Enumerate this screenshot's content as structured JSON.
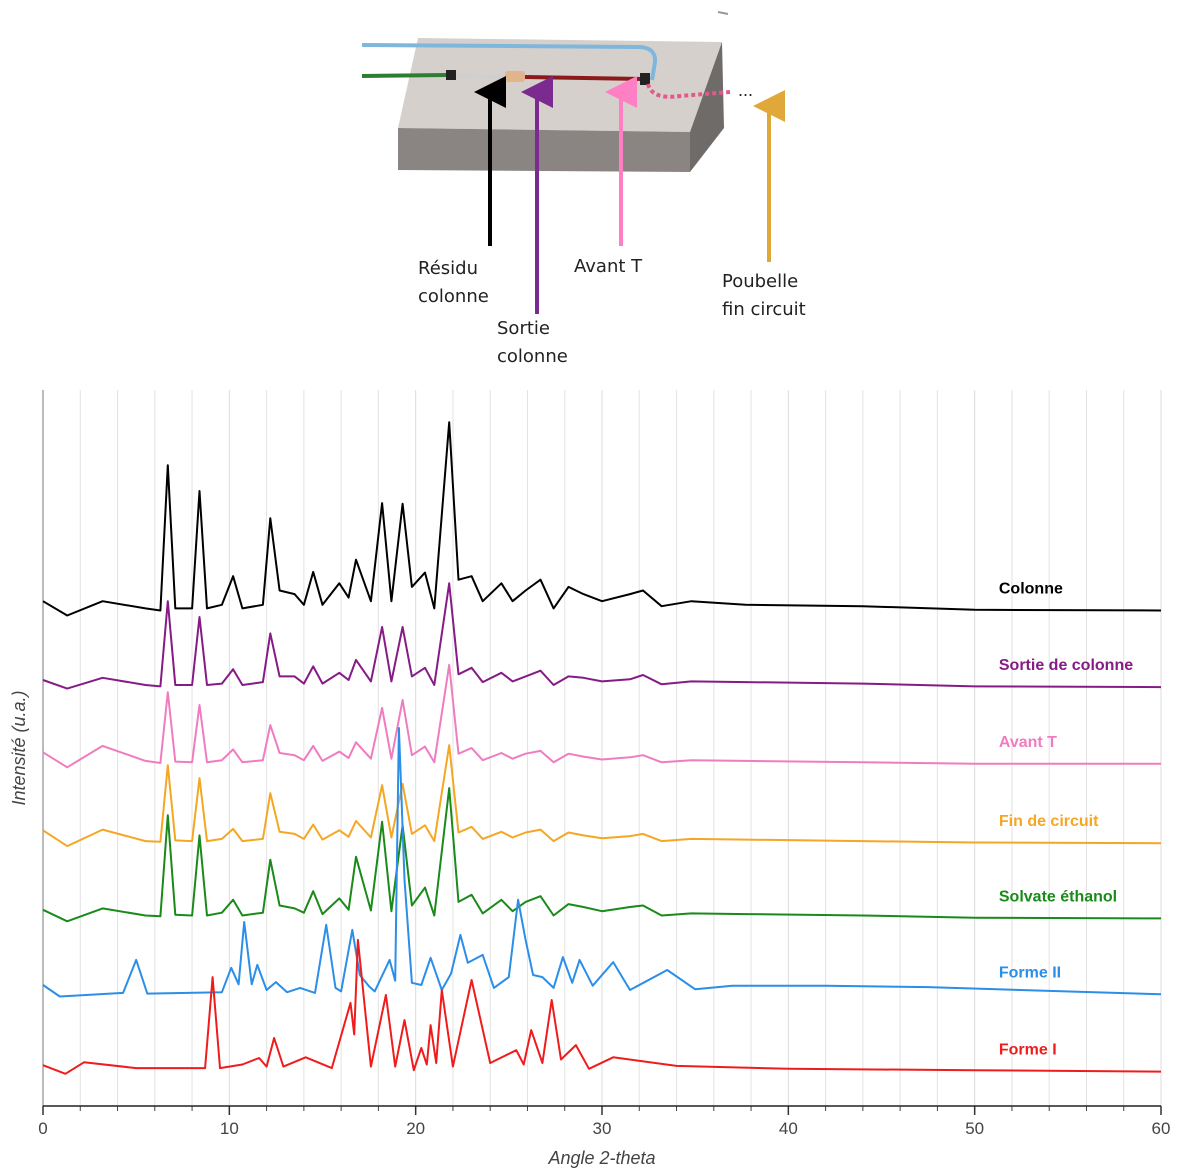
{
  "diagram": {
    "labels": [
      {
        "lines": [
          "Résidu",
          "colonne"
        ],
        "color": "#000000"
      },
      {
        "lines": [
          "Sortie",
          "colonne"
        ],
        "color": "#7b2a8f"
      },
      {
        "lines": [
          "Avant T"
        ],
        "color": "#ff7fc4"
      },
      {
        "lines": [
          "Poubelle",
          "fin circuit"
        ],
        "color": "#e0a838"
      }
    ],
    "ellipsis": "..."
  },
  "chart_data": {
    "type": "line",
    "xlabel": "Angle 2-theta",
    "ylabel": "Intensité (u.a.)",
    "xlim": [
      0,
      60
    ],
    "xticks": [
      0,
      10,
      20,
      30,
      40,
      50,
      60
    ],
    "xminorticks": [
      2,
      4,
      6,
      8,
      12,
      14,
      16,
      18,
      22,
      24,
      26,
      28,
      32,
      34,
      36,
      38,
      42,
      44,
      46,
      48,
      52,
      54,
      56,
      58
    ],
    "ylim": [
      0,
      100
    ],
    "grid": true,
    "series": [
      {
        "name": "Colonne",
        "color": "#000000",
        "x": [
          0,
          1.3,
          3.2,
          5.5,
          6.3,
          6.7,
          7.1,
          8.0,
          8.4,
          8.8,
          9.6,
          10.2,
          10.7,
          11.8,
          12.2,
          12.7,
          13.5,
          14.0,
          14.5,
          15.0,
          15.9,
          16.4,
          16.8,
          17.6,
          18.2,
          18.7,
          19.3,
          19.8,
          20.5,
          21.0,
          21.8,
          22.3,
          23.0,
          23.6,
          24.6,
          25.2,
          25.9,
          26.7,
          27.4,
          28.2,
          29.0,
          30.0,
          31.5,
          32.2,
          33.2,
          34.8,
          37.7,
          44,
          50,
          60
        ],
        "values": [
          70.5,
          68.5,
          70.5,
          69.5,
          69.2,
          89.5,
          69.5,
          69.5,
          85.9,
          69.5,
          70,
          74,
          69.5,
          70,
          82.1,
          72,
          71.5,
          70,
          74.6,
          70,
          73,
          71,
          76.3,
          70.5,
          84.2,
          70.5,
          84.1,
          72.5,
          74.5,
          69.5,
          95.5,
          73.5,
          74,
          70.5,
          73,
          70.5,
          72,
          73.5,
          69.5,
          72.5,
          71.5,
          70.5,
          71.5,
          72,
          69.8,
          70.5,
          70,
          69.8,
          69.3,
          69.2
        ]
      },
      {
        "name": "Sortie de colonne",
        "color": "#861b86",
        "x": [
          0,
          1.3,
          3.2,
          5.5,
          6.3,
          6.7,
          7.1,
          8.0,
          8.4,
          8.8,
          9.6,
          10.2,
          10.7,
          11.8,
          12.2,
          12.7,
          13.5,
          14.0,
          14.5,
          15.0,
          15.9,
          16.4,
          16.8,
          17.6,
          18.2,
          18.7,
          19.3,
          19.8,
          20.5,
          21.0,
          21.8,
          22.3,
          23.0,
          23.6,
          24.6,
          25.2,
          25.9,
          26.7,
          27.4,
          28.2,
          29.0,
          30.0,
          31.5,
          32.2,
          33.2,
          34.8,
          37.7,
          44,
          50,
          60
        ],
        "values": [
          59.5,
          58.3,
          59.8,
          58.8,
          58.6,
          70.5,
          58.8,
          58.8,
          68.3,
          58.8,
          59,
          61,
          58.8,
          59.2,
          66,
          60,
          60,
          59,
          61.4,
          59,
          60.5,
          59.5,
          62.3,
          59.3,
          66.9,
          59.3,
          66.9,
          60,
          61.2,
          58.8,
          73,
          60.3,
          61.2,
          59.2,
          60.5,
          59.3,
          60,
          60.8,
          58.8,
          60,
          59.8,
          59.3,
          59.6,
          60.2,
          58.9,
          59.3,
          59.2,
          59,
          58.6,
          58.5
        ]
      },
      {
        "name": "Avant T",
        "color": "#f07cc0",
        "x": [
          0,
          1.3,
          3.2,
          5.5,
          6.3,
          6.7,
          7.1,
          8.0,
          8.4,
          8.8,
          9.6,
          10.2,
          10.7,
          11.8,
          12.2,
          12.7,
          13.5,
          14.0,
          14.5,
          15.0,
          15.9,
          16.4,
          16.8,
          17.6,
          18.2,
          18.7,
          19.3,
          19.8,
          20.5,
          21.0,
          21.8,
          22.3,
          23.0,
          23.6,
          24.6,
          25.2,
          25.9,
          26.7,
          27.4,
          28.2,
          29.0,
          30.0,
          31.5,
          32.2,
          33.2,
          34.8,
          37.7,
          44,
          50,
          60
        ],
        "values": [
          49.4,
          47.3,
          50.3,
          48.2,
          47.9,
          57.8,
          48.1,
          48,
          56,
          48,
          48.3,
          49.8,
          48,
          48.3,
          53.2,
          49.3,
          49,
          48.3,
          50.3,
          48.2,
          49.5,
          48.6,
          50.8,
          48.5,
          55.6,
          48.5,
          56.7,
          49,
          50.2,
          48,
          61.6,
          49.2,
          50,
          48.3,
          49.3,
          48.5,
          49.2,
          49.6,
          48,
          49.2,
          48.8,
          48.4,
          48.7,
          49,
          48,
          48.3,
          48.2,
          48,
          47.8,
          47.8
        ]
      },
      {
        "name": "Fin de circuit",
        "color": "#f5a623",
        "x": [
          0,
          1.3,
          3.2,
          5.5,
          6.3,
          6.7,
          7.1,
          8.0,
          8.4,
          8.8,
          9.6,
          10.2,
          10.7,
          11.8,
          12.2,
          12.7,
          13.5,
          14.0,
          14.5,
          15.0,
          15.9,
          16.4,
          16.8,
          17.6,
          18.2,
          18.7,
          19.3,
          19.8,
          20.5,
          21.0,
          21.8,
          22.3,
          23.0,
          23.6,
          24.6,
          25.2,
          25.9,
          26.7,
          27.4,
          28.2,
          29.0,
          30.0,
          31.5,
          32.2,
          33.2,
          34.8,
          37.7,
          44,
          50,
          60
        ],
        "values": [
          38.5,
          36.3,
          38.6,
          37,
          36.9,
          47.6,
          37.1,
          37,
          45.8,
          37,
          37.3,
          38.7,
          37,
          37.3,
          43.7,
          38.3,
          38,
          37.3,
          39.3,
          37.2,
          38.5,
          37.6,
          39.8,
          37.5,
          44.8,
          37.5,
          45,
          38,
          39.2,
          37,
          50.4,
          38.2,
          39,
          37.3,
          38.3,
          37.5,
          38.2,
          38.6,
          37,
          38.2,
          37.8,
          37.4,
          37.7,
          38,
          37,
          37.3,
          37.2,
          37,
          36.8,
          36.7
        ]
      },
      {
        "name": "Solvate éthanol",
        "color": "#1a8a1a",
        "x": [
          0,
          1.3,
          3.2,
          5.5,
          6.3,
          6.7,
          7.1,
          8.0,
          8.4,
          8.8,
          9.6,
          10.2,
          10.7,
          11.8,
          12.2,
          12.7,
          13.5,
          14.0,
          14.5,
          15.0,
          15.9,
          16.4,
          16.8,
          17.6,
          18.2,
          18.7,
          19.3,
          19.8,
          20.5,
          21.0,
          21.8,
          22.3,
          23.0,
          23.6,
          24.6,
          25.2,
          25.9,
          26.7,
          27.4,
          28.2,
          29.0,
          30.0,
          31.5,
          32.2,
          33.2,
          34.8,
          37.7,
          44,
          50,
          60
        ],
        "values": [
          27.4,
          25.8,
          27.6,
          26.6,
          26.5,
          40.6,
          26.7,
          26.6,
          37.8,
          26.6,
          27,
          28.8,
          26.6,
          27,
          34.4,
          28,
          27.6,
          27,
          30,
          26.8,
          29,
          27.4,
          34.8,
          27.3,
          39.7,
          27.2,
          39.2,
          28,
          30.5,
          26.6,
          44.4,
          28.5,
          29.5,
          26.9,
          28.8,
          27.2,
          28.5,
          29.3,
          26.6,
          28.2,
          27.8,
          27.2,
          27.8,
          28,
          26.6,
          26.9,
          26.8,
          26.6,
          26.3,
          26.2
        ]
      },
      {
        "name": "Forme II",
        "color": "#2b8ee8",
        "x": [
          0,
          0.9,
          4.3,
          5.0,
          5.6,
          9.6,
          10.1,
          10.5,
          10.8,
          11.2,
          11.5,
          12.0,
          12.5,
          13.1,
          13.8,
          14.6,
          15.2,
          15.7,
          16.0,
          16.6,
          17.0,
          17.5,
          17.8,
          18.6,
          18.9,
          19.1,
          19.4,
          19.8,
          20.3,
          20.8,
          21.4,
          21.9,
          22.4,
          22.8,
          23.6,
          24.2,
          25.0,
          25.5,
          25.9,
          26.3,
          26.8,
          27.4,
          27.9,
          28.4,
          28.8,
          29.5,
          30.6,
          31.5,
          33.5,
          35,
          37,
          42,
          47.5,
          60
        ],
        "values": [
          16.9,
          15.3,
          15.8,
          20.4,
          15.7,
          15.9,
          19.3,
          17,
          25.7,
          17,
          19.7,
          16.2,
          17.3,
          15.9,
          16.5,
          15.8,
          25.3,
          16.5,
          16,
          24.6,
          18.3,
          16.7,
          16,
          20.4,
          17.5,
          52.8,
          31.6,
          17.2,
          16.9,
          20.7,
          16.2,
          18.5,
          23.9,
          20,
          21.1,
          16.5,
          18,
          28.8,
          23.2,
          18.3,
          18,
          16.5,
          20.8,
          17.2,
          20.4,
          16.8,
          20.1,
          16.2,
          19,
          16.3,
          16.8,
          16.8,
          16.6,
          15.6
        ]
      },
      {
        "name": "Forme I",
        "color": "#f01c1c",
        "x": [
          0,
          1.2,
          2.2,
          5,
          8.7,
          9.1,
          9.5,
          10.7,
          11.6,
          12.0,
          12.4,
          12.9,
          14.1,
          15.5,
          16.5,
          16.7,
          16.9,
          17.6,
          18.4,
          18.9,
          19.4,
          19.9,
          20.3,
          20.6,
          20.8,
          21.1,
          21.4,
          22.0,
          23.0,
          24.0,
          25.4,
          25.8,
          26.2,
          26.8,
          27.3,
          27.8,
          28.6,
          29.3,
          30.6,
          34,
          40,
          50,
          60
        ],
        "values": [
          5.7,
          4.5,
          6.1,
          5.3,
          5.3,
          18,
          5.3,
          5.8,
          6.7,
          5.5,
          9.5,
          5.5,
          6.8,
          5.3,
          14.4,
          10,
          23.2,
          5.5,
          15.5,
          5.5,
          12,
          5,
          8.1,
          5.8,
          11.3,
          6,
          16.2,
          5.5,
          17.6,
          6,
          7.8,
          5.8,
          10.6,
          6,
          14.8,
          6.5,
          8.5,
          5.2,
          6.8,
          5.6,
          5.2,
          5,
          4.8
        ]
      }
    ]
  }
}
